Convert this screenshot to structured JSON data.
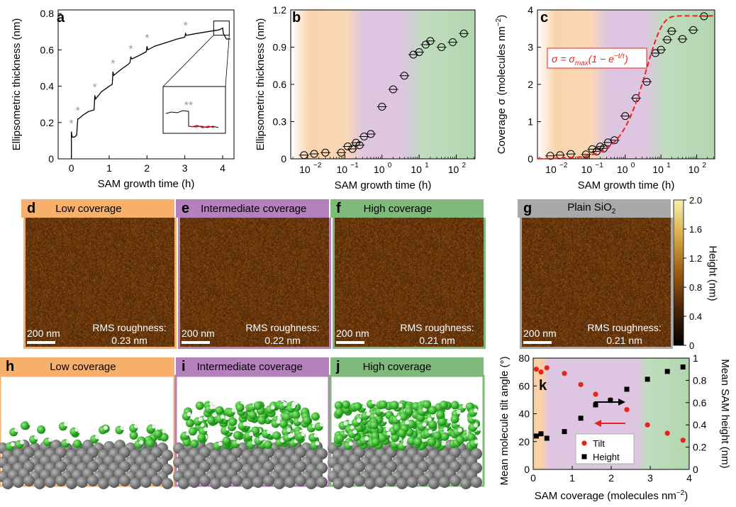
{
  "colors": {
    "low": "#f6b06b",
    "intermediate": "#b67fbd",
    "high": "#7fba7b",
    "plain": "#a9a9a9",
    "fit": "#e8231d",
    "star": "#9a9a9a",
    "tilt": "#e8231d",
    "height": "#000000"
  },
  "panels": {
    "a": {
      "label": "a"
    },
    "b": {
      "label": "b"
    },
    "c": {
      "label": "c"
    },
    "d": {
      "label": "d",
      "title": "Low coverage",
      "scale": "200 nm",
      "rms_label": "RMS roughness:",
      "rms_value": "0.23 nm"
    },
    "e": {
      "label": "e",
      "title": "Intermediate coverage",
      "scale": "200 nm",
      "rms_label": "RMS roughness:",
      "rms_value": "0.22 nm"
    },
    "f": {
      "label": "f",
      "title": "High coverage",
      "scale": "200 nm",
      "rms_label": "RMS roughness:",
      "rms_value": "0.21 nm"
    },
    "g": {
      "label": "g",
      "title_main": "Plain SiO",
      "title_sub": "2",
      "scale": "200 nm",
      "rms_label": "RMS roughness:",
      "rms_value": "0.21 nm"
    },
    "h": {
      "label": "h",
      "title": "Low coverage"
    },
    "i": {
      "label": "i",
      "title": "Intermediate coverage"
    },
    "j": {
      "label": "j",
      "title": "High coverage"
    },
    "k": {
      "label": "k"
    }
  },
  "colorbar": {
    "label": "Height (nm)",
    "ticks": [
      "2.0",
      "1.6",
      "1.2",
      "0.8",
      "0.4",
      "0"
    ]
  },
  "chart_data": [
    {
      "id": "a",
      "type": "line",
      "xlabel": "SAM growth time (h)",
      "ylabel": "Ellipsometric thickness (nm)",
      "xlim": [
        -0.35,
        4.3
      ],
      "ylim": [
        0,
        0.82
      ],
      "xticks": [
        0,
        1,
        2,
        3,
        4
      ],
      "yticks": [
        0,
        0.2,
        0.4,
        0.6,
        0.8
      ],
      "ytick_labels": [
        "0",
        "0.2",
        "0.4",
        "0.6",
        "0.8"
      ],
      "series": [
        {
          "x": [
            0,
            0.0,
            0.02,
            0.08,
            0.14,
            0.17,
            0.19,
            0.3,
            0.45,
            0.6,
            0.62,
            0.64,
            0.8,
            1.0,
            1.08,
            1.1,
            1.12,
            1.3,
            1.5,
            1.55,
            1.57,
            1.6,
            1.8,
            1.98,
            2.0,
            2.02,
            2.2,
            2.5,
            2.8,
            3.0,
            3.02,
            3.04,
            3.3,
            3.6,
            3.9,
            4.0,
            4.02,
            4.1,
            4.2
          ],
          "y": [
            0,
            0.15,
            0.12,
            0.12,
            0.13,
            0.22,
            0.22,
            0.24,
            0.26,
            0.27,
            0.35,
            0.33,
            0.37,
            0.4,
            0.41,
            0.48,
            0.46,
            0.49,
            0.52,
            0.53,
            0.56,
            0.55,
            0.57,
            0.59,
            0.62,
            0.6,
            0.62,
            0.64,
            0.66,
            0.67,
            0.69,
            0.68,
            0.69,
            0.7,
            0.71,
            0.72,
            0.69,
            0.66,
            0.66
          ]
        }
      ],
      "stars_x": [
        0,
        0.17,
        0.62,
        1.1,
        1.57,
        2.0,
        3.02
      ],
      "stars_y": [
        0.15,
        0.22,
        0.35,
        0.48,
        0.56,
        0.62,
        0.69
      ],
      "inset_star": "**"
    },
    {
      "id": "b",
      "type": "scatter",
      "xscale": "log",
      "xlabel": "SAM growth time (h)",
      "ylabel": "Ellipsometric thickness (nm)",
      "xlim": [
        0.0035,
        320
      ],
      "ylim": [
        0,
        1.2
      ],
      "xticks": [
        0.01,
        0.1,
        1,
        10,
        100
      ],
      "xtick_labels": [
        "10",
        "10",
        "10",
        "10",
        "10"
      ],
      "xtick_exps": [
        "−2",
        "−1",
        "0",
        "1",
        "2"
      ],
      "yticks": [
        0,
        0.3,
        0.6,
        0.9,
        1.2
      ],
      "ytick_labels": [
        "0",
        "0.3",
        "0.6",
        "0.9",
        "1.2"
      ],
      "x": [
        0.008,
        0.015,
        0.03,
        0.08,
        0.12,
        0.16,
        0.2,
        0.25,
        0.33,
        0.5,
        1.0,
        2.0,
        4.0,
        7.0,
        10.0,
        15.0,
        20.0,
        40.0,
        80.0,
        160.0
      ],
      "y": [
        0.03,
        0.04,
        0.05,
        0.05,
        0.1,
        0.08,
        0.13,
        0.11,
        0.18,
        0.2,
        0.42,
        0.56,
        0.67,
        0.84,
        0.86,
        0.92,
        0.95,
        0.9,
        0.94,
        1.01
      ]
    },
    {
      "id": "c",
      "type": "scatter",
      "xscale": "log",
      "xlabel": "SAM growth time (h)",
      "ylabel_main": "Coverage σ (molecules nm",
      "ylabel_sup": "−2",
      "ylabel_end": ")",
      "xlim": [
        0.0035,
        320
      ],
      "ylim": [
        0,
        4
      ],
      "xticks": [
        0.01,
        0.1,
        1,
        10,
        100
      ],
      "xtick_labels": [
        "10",
        "10",
        "10",
        "10",
        "10"
      ],
      "xtick_exps": [
        "−2",
        "−1",
        "0",
        "1",
        "2"
      ],
      "yticks": [
        0,
        1,
        2,
        3,
        4
      ],
      "ytick_labels": [
        "0",
        "1",
        "2",
        "3",
        "4"
      ],
      "x": [
        0.008,
        0.015,
        0.03,
        0.08,
        0.12,
        0.16,
        0.2,
        0.25,
        0.33,
        0.5,
        1.0,
        2.0,
        4.0,
        7.0,
        10.0,
        15.0,
        20.0,
        40.0,
        80.0,
        160.0
      ],
      "y": [
        0.08,
        0.1,
        0.13,
        0.12,
        0.26,
        0.2,
        0.33,
        0.28,
        0.44,
        0.5,
        1.15,
        1.63,
        2.07,
        2.84,
        2.93,
        3.2,
        3.43,
        3.22,
        3.46,
        3.83
      ],
      "fit": {
        "sigma_max": 3.84,
        "tau": 4.0
      },
      "fit_label": {
        "lhs": "σ = σ",
        "lhs_sub": "max",
        "rhs": "(1 − e",
        "rhs_sup": "−t/τ",
        "rhs_end": ")"
      }
    },
    {
      "id": "k",
      "type": "scatter",
      "xlabel_main": "SAM coverage (molecules nm",
      "xlabel_sup": "−2",
      "xlabel_end": ")",
      "ylabel_left": "Mean molecule tilt angle (°)",
      "ylabel_right": "Mean SAM height (nm)",
      "xlim": [
        0,
        4
      ],
      "ylim_left": [
        0,
        80
      ],
      "ylim_right": [
        0,
        1
      ],
      "xticks": [
        0,
        1,
        2,
        3,
        4
      ],
      "yticks_left": [
        0,
        20,
        40,
        60,
        80
      ],
      "yticks_right": [
        0,
        0.2,
        0.4,
        0.6,
        0.8,
        1
      ],
      "ytick_right_labels": [
        "0",
        "0.2",
        "0.4",
        "0.6",
        "0.8",
        "1"
      ],
      "legend": [
        {
          "name": "Tilt"
        },
        {
          "name": "Height"
        }
      ],
      "tilt_x": [
        0.08,
        0.2,
        0.35,
        0.8,
        1.22,
        1.6,
        1.98,
        2.4,
        2.93,
        3.44,
        3.84
      ],
      "tilt_y": [
        72,
        70,
        73,
        69,
        61,
        54,
        50,
        43,
        32,
        26,
        21
      ],
      "height_x": [
        0.08,
        0.2,
        0.35,
        0.8,
        1.22,
        1.6,
        1.98,
        2.4,
        2.93,
        3.44,
        3.84
      ],
      "height_y": [
        0.3,
        0.32,
        0.28,
        0.34,
        0.46,
        0.58,
        0.62,
        0.72,
        0.81,
        0.88,
        0.92
      ]
    }
  ]
}
